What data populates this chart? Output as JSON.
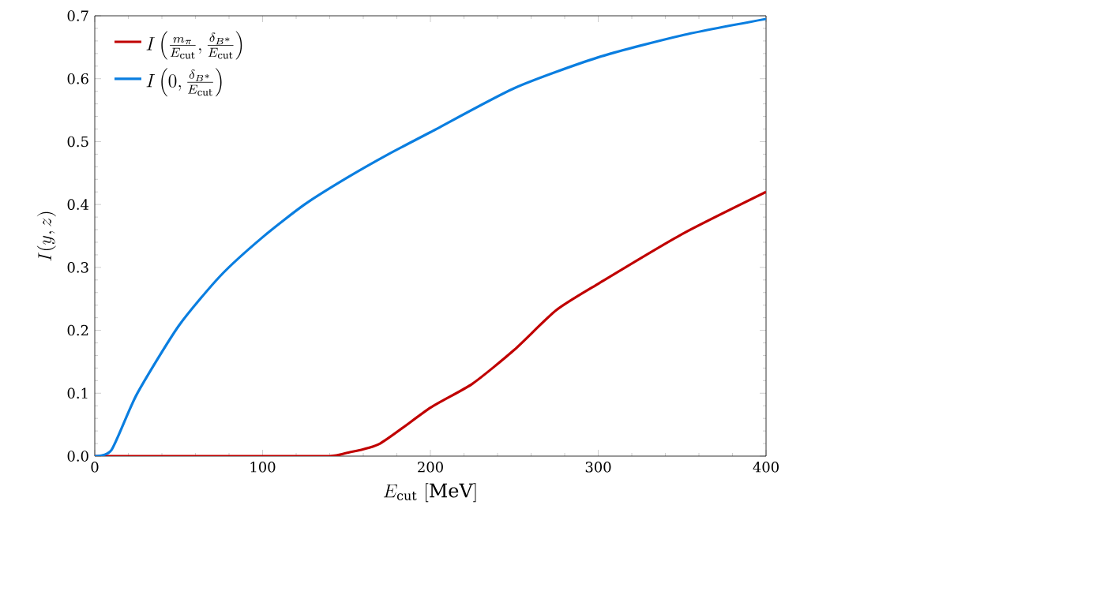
{
  "chart_data": {
    "type": "line",
    "xlabel": "E_{\\rm cut}\\ [\\mathrm{MeV}]",
    "ylabel": "I(y,z)",
    "xlim": [
      0,
      400
    ],
    "ylim": [
      0,
      0.7
    ],
    "xticks": [
      0,
      100,
      200,
      300,
      400
    ],
    "yticks": [
      {
        "value": 0,
        "label": "0.0"
      },
      0.1,
      0.2,
      0.3,
      0.4,
      0.5,
      0.6,
      0.7
    ],
    "legend": "top left",
    "grid": false,
    "marker": "none",
    "line_style": "solid",
    "series": [
      {
        "name": "I\\left(\\frac{m_\\pi}{E_{\\rm cut}},\\frac{\\delta_{B^*}}{E_{\\rm cut}}\\right)",
        "color": "#c00000",
        "x": [
          0,
          50,
          100,
          140,
          150,
          170,
          200,
          225,
          250,
          275,
          300,
          350,
          400
        ],
        "values": [
          0,
          0,
          0,
          0,
          0.005,
          0.02,
          0.077,
          0.115,
          0.169,
          0.232,
          0.274,
          0.353,
          0.42
        ]
      },
      {
        "name": "I\\left(0,\\frac{\\delta_{B^*}}{E_{\\rm cut}}\\right)",
        "color": "#0a7ee0",
        "x": [
          0,
          10,
          25,
          50,
          75,
          100,
          125,
          150,
          175,
          200,
          250,
          300,
          350,
          400
        ],
        "values": [
          0,
          0.01,
          0.098,
          0.207,
          0.287,
          0.348,
          0.4,
          0.442,
          0.48,
          0.515,
          0.585,
          0.634,
          0.669,
          0.695
        ]
      }
    ]
  }
}
